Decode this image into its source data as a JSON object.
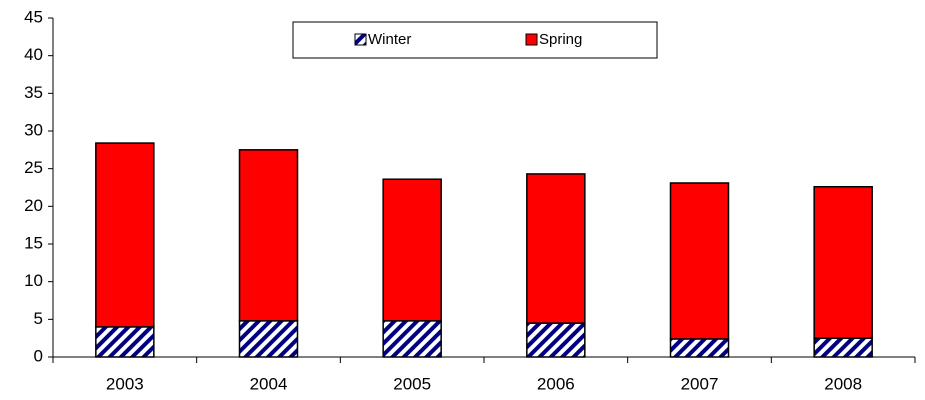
{
  "chart_data": {
    "type": "stacked-bar",
    "categories": [
      "2003",
      "2004",
      "2005",
      "2006",
      "2007",
      "2008"
    ],
    "series": [
      {
        "name": "Winter",
        "color": "#000080",
        "hatch": true,
        "values": [
          4.0,
          4.8,
          4.8,
          4.5,
          2.4,
          2.5
        ]
      },
      {
        "name": "Spring",
        "color": "#ff0000",
        "hatch": false,
        "values": [
          24.4,
          22.7,
          18.8,
          19.8,
          20.7,
          20.1
        ]
      }
    ],
    "ylim": [
      0,
      45
    ],
    "yticks": [
      0,
      5,
      10,
      15,
      20,
      25,
      30,
      35,
      40,
      45
    ],
    "grid": false,
    "legend": "top"
  }
}
